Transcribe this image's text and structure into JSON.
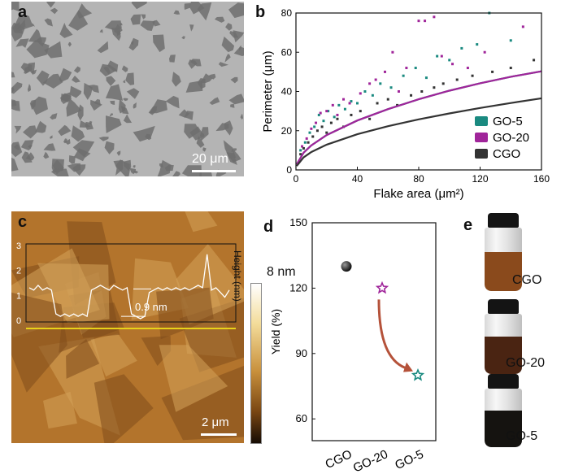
{
  "panels": {
    "a": {
      "letter": "a",
      "scale_bar": "20 μm"
    },
    "b": {
      "letter": "b"
    },
    "c": {
      "letter": "c",
      "scale_bar": "2 μm",
      "profile_step": "0.9 nm",
      "height_axis_label": "Height (nm)",
      "height_ticks": [
        "3",
        "2",
        "1",
        "0"
      ],
      "colorbar_max": "8 nm"
    },
    "d": {
      "letter": "d"
    },
    "e": {
      "letter": "e",
      "vials": [
        {
          "label": "CGO",
          "liquid": "#8a4a1c"
        },
        {
          "label": "GO-20",
          "liquid": "#4a2412"
        },
        {
          "label": "GO-5",
          "liquid": "#151310"
        }
      ]
    }
  },
  "colors": {
    "GO-5": "#1a8a80",
    "GO-20": "#a0259a",
    "CGO": "#333333",
    "arrow": "#b5523a",
    "afm_line": "#e8d21a"
  },
  "chart_data": [
    {
      "type": "scatter",
      "panel": "b",
      "xlabel": "Flake area (μm²)",
      "ylabel": "Perimeter (μm)",
      "xlim": [
        0,
        160
      ],
      "ylim": [
        0,
        80
      ],
      "xticks": [
        "0",
        "40",
        "80",
        "120",
        "160"
      ],
      "yticks": [
        "0",
        "20",
        "40",
        "60",
        "80"
      ],
      "legend_position": "bottom-right",
      "series": [
        {
          "name": "GO-5",
          "fit": [
            [
              0.5,
              2.8
            ],
            [
              5,
              8.8
            ],
            [
              10,
              12.5
            ],
            [
              20,
              17.8
            ],
            [
              40,
              25.2
            ],
            [
              60,
              31
            ],
            [
              80,
              36
            ],
            [
              100,
              40.4
            ],
            [
              120,
              44.2
            ],
            [
              140,
              47.5
            ],
            [
              160,
              50.3
            ]
          ],
          "points": [
            [
              3,
              10
            ],
            [
              6,
              14
            ],
            [
              9,
              19
            ],
            [
              12,
              22
            ],
            [
              15,
              28
            ],
            [
              18,
              25
            ],
            [
              21,
              30
            ],
            [
              25,
              27
            ],
            [
              28,
              33
            ],
            [
              32,
              31
            ],
            [
              36,
              35
            ],
            [
              40,
              34
            ],
            [
              45,
              40
            ],
            [
              50,
              38
            ],
            [
              55,
              44
            ],
            [
              62,
              42
            ],
            [
              70,
              48
            ],
            [
              78,
              52
            ],
            [
              85,
              47
            ],
            [
              92,
              58
            ],
            [
              100,
              56
            ],
            [
              108,
              62
            ],
            [
              118,
              64
            ],
            [
              126,
              80
            ],
            [
              140,
              66
            ]
          ]
        },
        {
          "name": "GO-20",
          "fit": [
            [
              0.5,
              2.8
            ],
            [
              5,
              8.8
            ],
            [
              10,
              12.5
            ],
            [
              20,
              17.8
            ],
            [
              40,
              25.2
            ],
            [
              60,
              31
            ],
            [
              80,
              36
            ],
            [
              100,
              40.4
            ],
            [
              120,
              44.2
            ],
            [
              140,
              47.5
            ],
            [
              160,
              50.3
            ]
          ],
          "points": [
            [
              4,
              12
            ],
            [
              7,
              16
            ],
            [
              10,
              21
            ],
            [
              13,
              24
            ],
            [
              16,
              29
            ],
            [
              20,
              30
            ],
            [
              24,
              33
            ],
            [
              27,
              28
            ],
            [
              31,
              36
            ],
            [
              35,
              34
            ],
            [
              42,
              39
            ],
            [
              48,
              44
            ],
            [
              52,
              46
            ],
            [
              58,
              50
            ],
            [
              63,
              60
            ],
            [
              67,
              40
            ],
            [
              72,
              52
            ],
            [
              80,
              76
            ],
            [
              84,
              76
            ],
            [
              90,
              78
            ],
            [
              95,
              58
            ],
            [
              102,
              54
            ],
            [
              112,
              52
            ],
            [
              123,
              60
            ],
            [
              148,
              73
            ]
          ]
        },
        {
          "name": "CGO",
          "fit": [
            [
              0.5,
              2
            ],
            [
              5,
              6.4
            ],
            [
              10,
              9.1
            ],
            [
              20,
              12.9
            ],
            [
              40,
              18.2
            ],
            [
              60,
              22.3
            ],
            [
              80,
              25.8
            ],
            [
              100,
              28.8
            ],
            [
              120,
              31.6
            ],
            [
              140,
              34.1
            ],
            [
              160,
              36.5
            ]
          ],
          "points": [
            [
              3,
              8
            ],
            [
              5,
              11
            ],
            [
              8,
              14
            ],
            [
              11,
              17
            ],
            [
              14,
              20
            ],
            [
              17,
              22
            ],
            [
              20,
              19
            ],
            [
              23,
              24
            ],
            [
              27,
              26
            ],
            [
              31,
              22
            ],
            [
              36,
              28
            ],
            [
              42,
              30
            ],
            [
              48,
              26
            ],
            [
              53,
              34
            ],
            [
              60,
              36
            ],
            [
              66,
              33
            ],
            [
              75,
              38
            ],
            [
              82,
              40
            ],
            [
              90,
              42
            ],
            [
              96,
              44
            ],
            [
              105,
              46
            ],
            [
              115,
              48
            ],
            [
              128,
              50
            ],
            [
              140,
              52
            ],
            [
              155,
              56
            ]
          ]
        }
      ]
    },
    {
      "type": "scatter",
      "panel": "d",
      "xlabel": "",
      "ylabel": "Yield (%)",
      "ylim": [
        50,
        150
      ],
      "yticks": [
        "60",
        "90",
        "120",
        "150"
      ],
      "categories": [
        "CGO",
        "GO-20",
        "GO-5"
      ],
      "values": [
        130,
        120,
        80
      ],
      "markers": [
        "sphere",
        "star",
        "star"
      ]
    }
  ]
}
